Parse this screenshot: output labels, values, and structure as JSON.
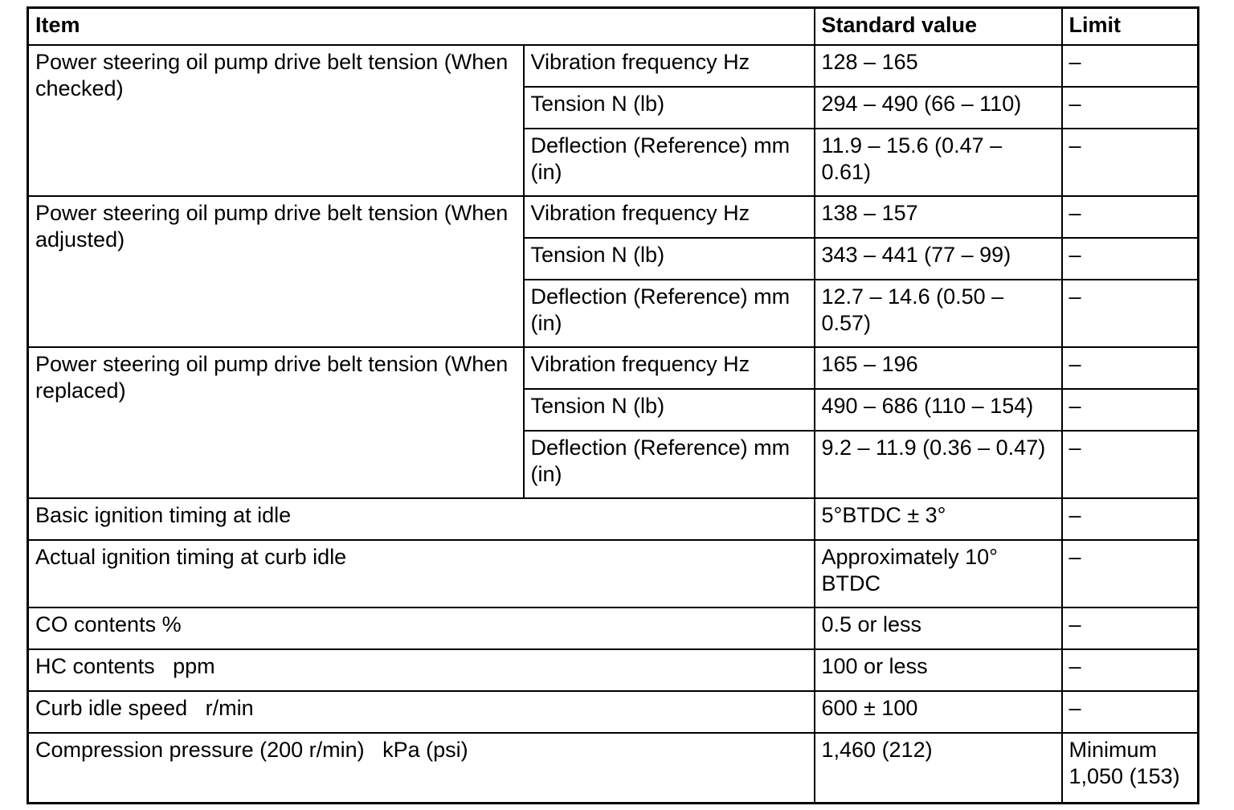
{
  "table": {
    "headers": {
      "item": "Item",
      "standard_value": "Standard value",
      "limit": "Limit"
    },
    "groups": [
      {
        "item": "Power steering oil pump drive belt tension (When checked)",
        "rows": [
          {
            "sub_item": "Vibration frequency Hz",
            "standard_value": "128 – 165",
            "limit": "–"
          },
          {
            "sub_item": "Tension N (lb)",
            "standard_value": "294 – 490 (66 – 110)",
            "limit": "–"
          },
          {
            "sub_item": "Deflection (Reference) mm (in)",
            "standard_value": "11.9 – 15.6 (0.47 – 0.61)",
            "limit": "–"
          }
        ]
      },
      {
        "item": "Power steering oil pump drive belt tension (When adjusted)",
        "rows": [
          {
            "sub_item": "Vibration frequency Hz",
            "standard_value": "138 – 157",
            "limit": "–"
          },
          {
            "sub_item": "Tension N (lb)",
            "standard_value": "343 – 441 (77 – 99)",
            "limit": "–"
          },
          {
            "sub_item": "Deflection (Reference) mm (in)",
            "standard_value": "12.7 – 14.6 (0.50 – 0.57)",
            "limit": "–"
          }
        ]
      },
      {
        "item": "Power steering oil pump drive belt tension (When replaced)",
        "rows": [
          {
            "sub_item": "Vibration frequency Hz",
            "standard_value": "165 – 196",
            "limit": "–"
          },
          {
            "sub_item": "Tension N (lb)",
            "standard_value": "490 – 686 (110 – 154)",
            "limit": "–"
          },
          {
            "sub_item": "Deflection (Reference) mm (in)",
            "standard_value": "9.2 – 11.9 (0.36 – 0.47)",
            "limit": "–"
          }
        ]
      }
    ],
    "simple_rows": [
      {
        "item": "Basic ignition timing at idle",
        "standard_value": "5°BTDC ± 3°",
        "limit": "–"
      },
      {
        "item": "Actual ignition timing at curb idle",
        "standard_value": "Approximately 10° BTDC",
        "limit": "–"
      },
      {
        "item": "CO contents %",
        "standard_value": "0.5 or less",
        "limit": "–"
      },
      {
        "item": "HC contents   ppm",
        "standard_value": "100 or less",
        "limit": "–"
      },
      {
        "item": "Curb idle speed   r/min",
        "standard_value": "600 ± 100",
        "limit": "–"
      },
      {
        "item": "Compression pressure (200 r/min)   kPa (psi)",
        "standard_value": "1,460 (212)",
        "limit": "Minimum 1,050 (153)"
      }
    ]
  }
}
